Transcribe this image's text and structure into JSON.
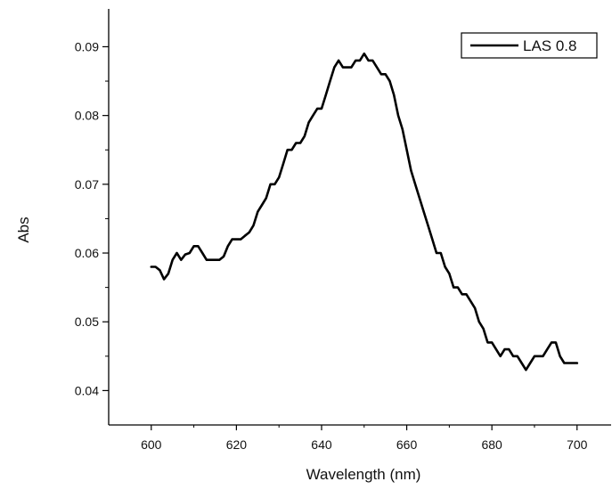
{
  "chart_data": {
    "type": "line",
    "xlabel": "Wavelength (nm)",
    "ylabel": "Abs",
    "xlim": [
      590,
      708
    ],
    "ylim": [
      0.035,
      0.0955
    ],
    "x_ticks": [
      600,
      620,
      640,
      660,
      680,
      700
    ],
    "x_tick_labels": [
      "600",
      "620",
      "640",
      "660",
      "680",
      "700"
    ],
    "y_ticks": [
      0.04,
      0.05,
      0.06,
      0.07,
      0.08,
      0.09
    ],
    "y_tick_labels": [
      "0.04",
      "0.05",
      "0.06",
      "0.07",
      "0.08",
      "0.09"
    ],
    "grid": false,
    "legend_position": "top-right",
    "series": [
      {
        "name": "LAS 0.8",
        "color": "#000000",
        "x": [
          600,
          601,
          602,
          603,
          604,
          605,
          606,
          607,
          608,
          609,
          610,
          611,
          612,
          613,
          614,
          615,
          616,
          617,
          618,
          619,
          620,
          621,
          622,
          623,
          624,
          625,
          626,
          627,
          628,
          629,
          630,
          631,
          632,
          633,
          634,
          635,
          636,
          637,
          638,
          639,
          640,
          641,
          642,
          643,
          644,
          645,
          646,
          647,
          648,
          649,
          650,
          651,
          652,
          653,
          654,
          655,
          656,
          657,
          658,
          659,
          660,
          661,
          662,
          663,
          664,
          665,
          666,
          667,
          668,
          669,
          670,
          671,
          672,
          673,
          674,
          675,
          676,
          677,
          678,
          679,
          680,
          681,
          682,
          683,
          684,
          685,
          686,
          687,
          688,
          689,
          690,
          691,
          692,
          693,
          694,
          695,
          696,
          697,
          698,
          699,
          700
        ],
        "y": [
          0.058,
          0.058,
          0.0575,
          0.0562,
          0.057,
          0.059,
          0.06,
          0.059,
          0.0598,
          0.06,
          0.061,
          0.061,
          0.06,
          0.059,
          0.059,
          0.059,
          0.059,
          0.0595,
          0.061,
          0.062,
          0.062,
          0.062,
          0.0625,
          0.063,
          0.064,
          0.066,
          0.067,
          0.068,
          0.07,
          0.07,
          0.071,
          0.073,
          0.075,
          0.075,
          0.076,
          0.076,
          0.077,
          0.079,
          0.08,
          0.081,
          0.081,
          0.083,
          0.085,
          0.087,
          0.088,
          0.087,
          0.087,
          0.087,
          0.088,
          0.088,
          0.089,
          0.088,
          0.088,
          0.087,
          0.086,
          0.086,
          0.085,
          0.083,
          0.08,
          0.078,
          0.075,
          0.072,
          0.07,
          0.068,
          0.066,
          0.064,
          0.062,
          0.06,
          0.06,
          0.058,
          0.057,
          0.055,
          0.055,
          0.054,
          0.054,
          0.053,
          0.052,
          0.05,
          0.049,
          0.047,
          0.047,
          0.046,
          0.045,
          0.046,
          0.046,
          0.045,
          0.045,
          0.044,
          0.043,
          0.044,
          0.045,
          0.045,
          0.045,
          0.046,
          0.047,
          0.047,
          0.045,
          0.044,
          0.044,
          0.044,
          0.044
        ]
      }
    ]
  }
}
